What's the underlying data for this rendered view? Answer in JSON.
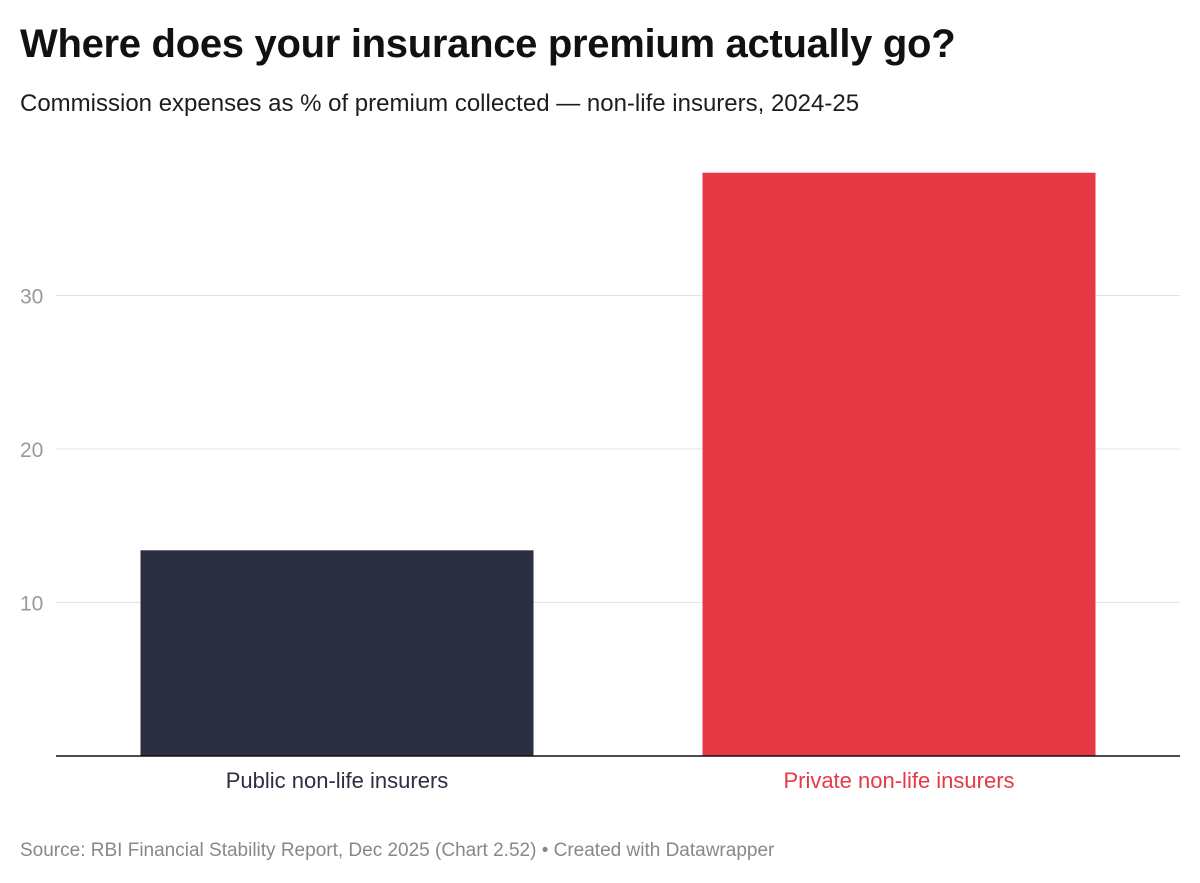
{
  "header": {
    "title": "Where does your insurance premium actually go?",
    "subtitle": "Commission expenses as % of premium collected — non-life insurers, 2024-25"
  },
  "footer": {
    "source": "Source: RBI Financial Stability Report, Dec 2025 (Chart 2.52)",
    "separator": "•",
    "credit": "Created with Datawrapper"
  },
  "chart_data": {
    "type": "bar",
    "categories": [
      "Public non-life insurers",
      "Private non-life insurers"
    ],
    "values": [
      13.4,
      38.0
    ],
    "colors": [
      "#2c2e42",
      "#e63946"
    ],
    "label_colors": [
      "#2c2e42",
      "#e63946"
    ],
    "yticks": [
      10,
      20,
      30
    ],
    "ylim": [
      0,
      40
    ],
    "grid": true
  }
}
